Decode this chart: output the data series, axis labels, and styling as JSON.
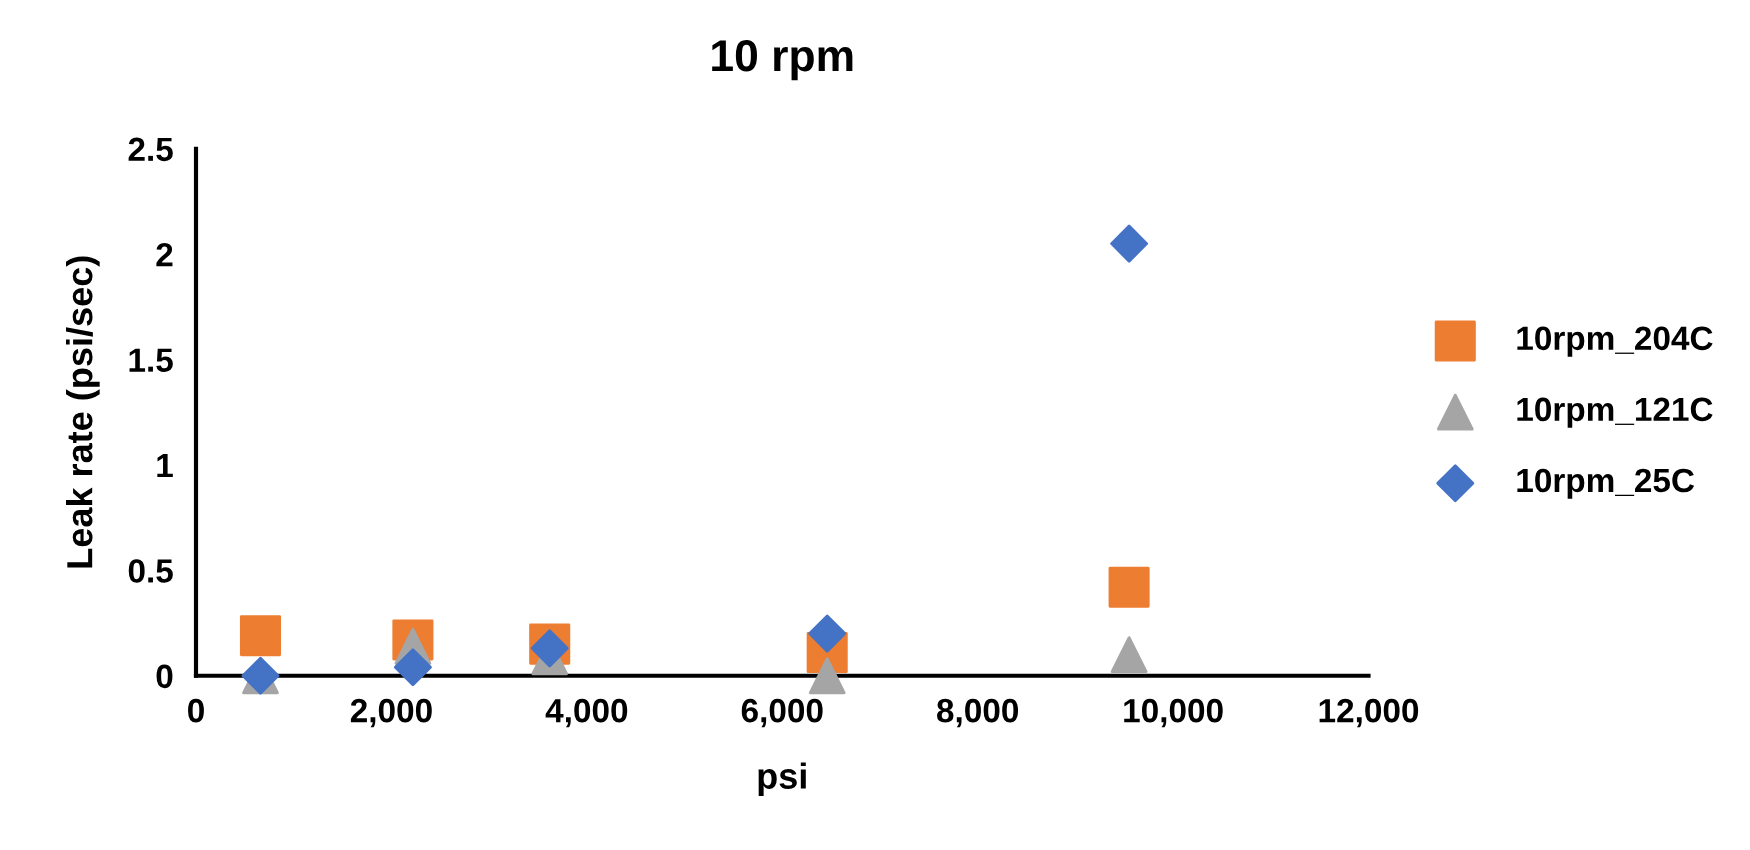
{
  "chart_data": {
    "type": "scatter",
    "title": "10 rpm",
    "xlabel": "psi",
    "ylabel": "Leak rate (psi/sec)",
    "xlim": [
      0,
      12000
    ],
    "xticks": [
      {
        "value": 0,
        "label": "0"
      },
      {
        "value": 2000,
        "label": "2,000"
      },
      {
        "value": 4000,
        "label": "4,000"
      },
      {
        "value": 6000,
        "label": "6,000"
      },
      {
        "value": 8000,
        "label": "8,000"
      },
      {
        "value": 10000,
        "label": "10,000"
      },
      {
        "value": 12000,
        "label": "12,000"
      }
    ],
    "ylim": [
      0,
      2.5
    ],
    "yticks": [
      0,
      0.5,
      1,
      1.5,
      2,
      2.5
    ],
    "grid": false,
    "legend": "right",
    "series": [
      {
        "name": "10rpm_204C",
        "color": "#ed7d31",
        "marker": "square",
        "x": [
          660,
          2220,
          3620,
          6460,
          9550
        ],
        "values": [
          0.19,
          0.17,
          0.15,
          0.11,
          0.42
        ]
      },
      {
        "name": "10rpm_121C",
        "color": "#a5a5a5",
        "marker": "triangle",
        "x": [
          660,
          2220,
          3620,
          6460,
          9550
        ],
        "values": [
          0.0,
          0.14,
          0.09,
          0.0,
          0.1
        ]
      },
      {
        "name": "10rpm_25C",
        "color": "#4472c4",
        "marker": "diamond",
        "x": [
          660,
          2220,
          3620,
          6460,
          9550
        ],
        "values": [
          0.0,
          0.04,
          0.13,
          0.2,
          2.05
        ]
      }
    ]
  }
}
